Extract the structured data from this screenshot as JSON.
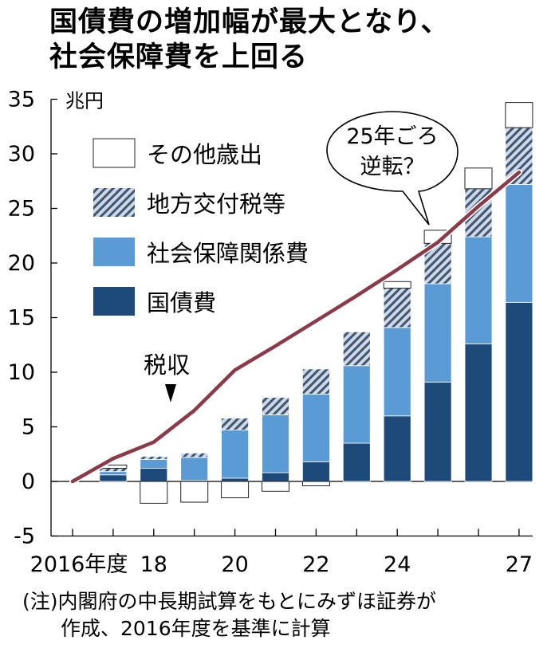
{
  "title": {
    "line1": "国債費の増加幅が最大となり、",
    "line2": "社会保障費を上回る"
  },
  "note": {
    "line1": "(注)内閣府の中長期試算をもとにみずほ証券が",
    "line2": "作成、2016年度を基準に計算"
  },
  "colors": {
    "debt": "#1d4a78",
    "social": "#5b9bd5",
    "local": "#b7c4d8",
    "other": "#ffffff",
    "tax_line": "#8b3a4a"
  },
  "chart_data": {
    "type": "bar",
    "stacked": true,
    "unit": "兆円",
    "x": [
      2016,
      2017,
      2018,
      2019,
      2020,
      2021,
      2022,
      2023,
      2024,
      2025,
      2026,
      2027
    ],
    "xtick_labels": [
      "2016年度",
      "18",
      "20",
      "22",
      "24",
      "27"
    ],
    "xtick_values": [
      2016,
      2018,
      2020,
      2022,
      2024,
      2027
    ],
    "ylim": [
      -5,
      35
    ],
    "yticks": [
      -5,
      0,
      5,
      10,
      15,
      20,
      25,
      30,
      35
    ],
    "series": [
      {
        "name": "国債費",
        "color_key": "debt",
        "values": [
          0,
          0.6,
          1.2,
          0.1,
          0.3,
          0.8,
          1.8,
          3.5,
          6.0,
          9.1,
          12.6,
          16.4
        ]
      },
      {
        "name": "社会保障関係費",
        "color_key": "social",
        "values": [
          0,
          0.3,
          0.8,
          2.1,
          4.4,
          5.3,
          6.2,
          7.1,
          8.1,
          9.0,
          9.8,
          10.8
        ]
      },
      {
        "name": "地方交付税等",
        "color_key": "local",
        "values": [
          0,
          0.3,
          0.3,
          0.4,
          1.1,
          1.6,
          2.3,
          3.1,
          3.6,
          3.7,
          4.4,
          5.2
        ]
      },
      {
        "name": "その他歳出",
        "color_key": "other",
        "values": [
          0,
          0.3,
          -2.0,
          -1.9,
          -1.5,
          -0.9,
          -0.4,
          0,
          0.6,
          1.2,
          1.9,
          2.3
        ]
      }
    ],
    "line": {
      "name": "税収",
      "values": [
        0,
        2.1,
        3.6,
        6.5,
        10.2,
        12.4,
        14.7,
        17.0,
        19.4,
        21.9,
        25.2,
        28.3
      ]
    },
    "legend": [
      "その他歳出",
      "地方交付税等",
      "社会保障関係費",
      "国債費"
    ],
    "annotations": {
      "tax_label": "税収",
      "bubble_line1": "25年ごろ",
      "bubble_line2": "逆転？"
    },
    "grid": false
  }
}
